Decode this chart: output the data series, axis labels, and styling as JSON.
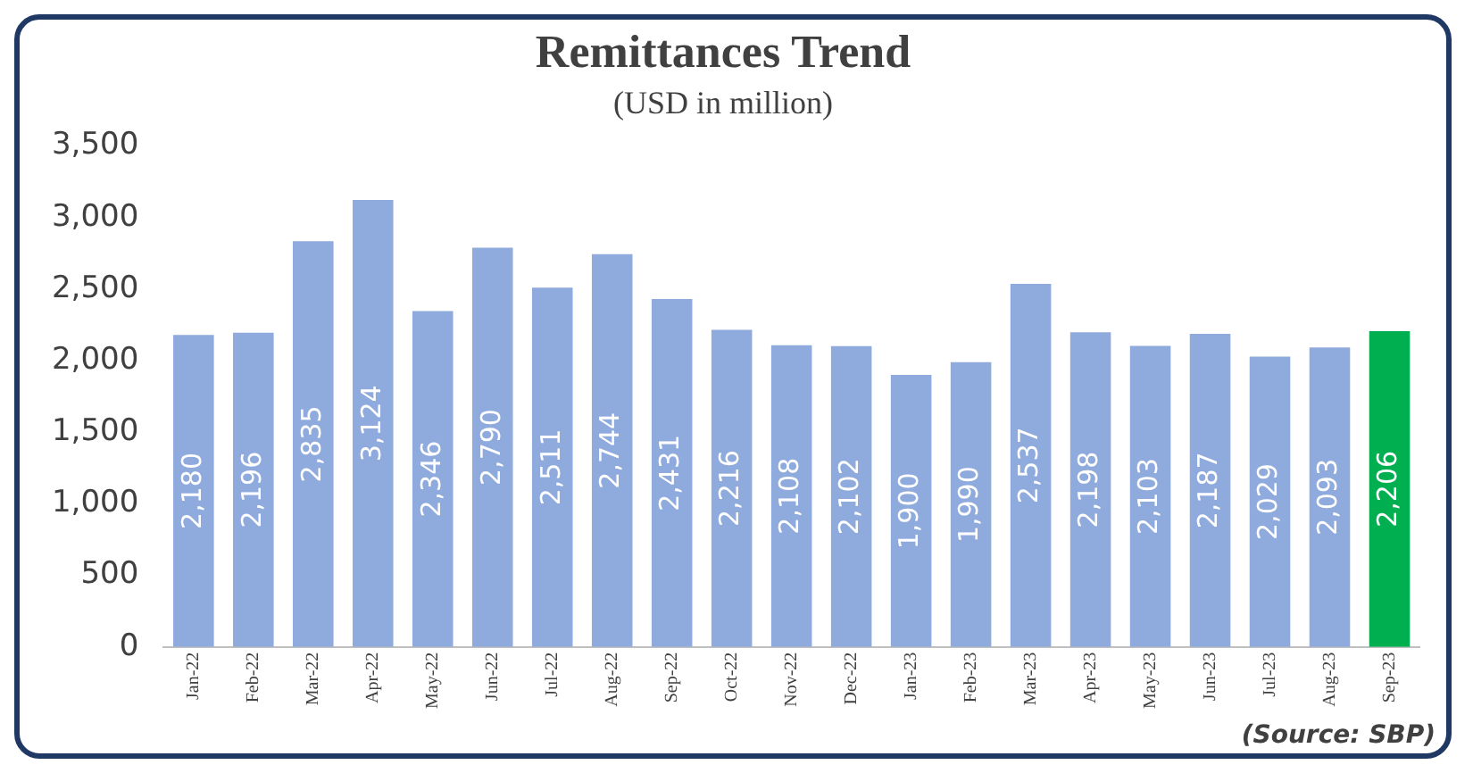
{
  "chart_data": {
    "type": "bar",
    "title": "Remittances Trend",
    "subtitle": "(USD in million)",
    "categories": [
      "Jan-22",
      "Feb-22",
      "Mar-22",
      "Apr-22",
      "May-22",
      "Jun-22",
      "Jul-22",
      "Aug-22",
      "Sep-22",
      "Oct-22",
      "Nov-22",
      "Dec-22",
      "Jan-23",
      "Feb-23",
      "Mar-23",
      "Apr-23",
      "May-23",
      "Jun-23",
      "Jul-23",
      "Aug-23",
      "Sep-23"
    ],
    "values": [
      2180,
      2196,
      2835,
      3124,
      2346,
      2790,
      2511,
      2744,
      2431,
      2216,
      2108,
      2102,
      1900,
      1990,
      2537,
      2198,
      2103,
      2187,
      2029,
      2093,
      2206
    ],
    "colors": [
      "#8faadc",
      "#8faadc",
      "#8faadc",
      "#8faadc",
      "#8faadc",
      "#8faadc",
      "#8faadc",
      "#8faadc",
      "#8faadc",
      "#8faadc",
      "#8faadc",
      "#8faadc",
      "#8faadc",
      "#8faadc",
      "#8faadc",
      "#8faadc",
      "#8faadc",
      "#8faadc",
      "#8faadc",
      "#8faadc",
      "#00b050"
    ],
    "value_labels": [
      "2,180",
      "2,196",
      "2,835",
      "3,124",
      "2,346",
      "2,790",
      "2,511",
      "2,744",
      "2,431",
      "2,216",
      "2,108",
      "2,102",
      "1,900",
      "1,990",
      "2,537",
      "2,198",
      "2,103",
      "2,187",
      "2,029",
      "2,093",
      "2,206"
    ],
    "ylim": [
      0,
      3500
    ],
    "yticks": [
      0,
      500,
      {
        "value": 1000,
        "label": "1,000"
      },
      {
        "value": 1500,
        "label": "1,500"
      },
      {
        "value": 2000,
        "label": "2,000"
      },
      {
        "value": 2500,
        "label": "2,500"
      },
      {
        "value": 3000,
        "label": "3,000"
      },
      {
        "value": 3500,
        "label": "3,500"
      }
    ],
    "grid": false,
    "legend": false,
    "annotations": [
      "(Source: SBP)"
    ]
  }
}
